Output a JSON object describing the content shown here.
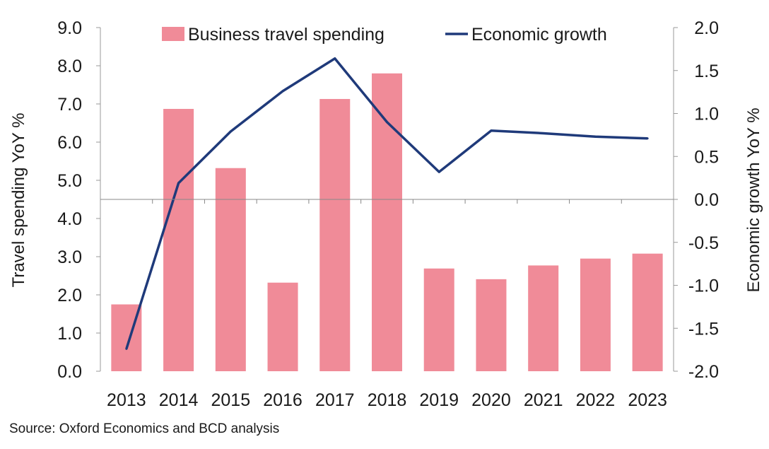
{
  "chart_data": {
    "type": "bar",
    "categories": [
      "2013",
      "2014",
      "2015",
      "2016",
      "2017",
      "2018",
      "2019",
      "2020",
      "2021",
      "2022",
      "2023"
    ],
    "series": [
      {
        "name": "Business travel spending",
        "type": "bar",
        "axis": "left",
        "color": "#f08b98",
        "values": [
          1.75,
          6.87,
          5.32,
          2.32,
          7.13,
          7.8,
          2.69,
          2.41,
          2.77,
          2.95,
          3.08
        ]
      },
      {
        "name": "Economic growth",
        "type": "line",
        "axis": "right",
        "color": "#1f3a7a",
        "values": [
          -1.74,
          0.19,
          0.79,
          1.26,
          1.64,
          0.9,
          0.32,
          0.8,
          0.77,
          0.73,
          0.71
        ]
      }
    ],
    "ylabel": "Travel spending YoY %",
    "y2label": "Economic growth YoY %",
    "ylim": [
      0,
      9
    ],
    "y2lim": [
      -2,
      2
    ],
    "yticks": [
      "0.0",
      "1.0",
      "2.0",
      "3.0",
      "4.0",
      "5.0",
      "6.0",
      "7.0",
      "8.0",
      "9.0"
    ],
    "y2ticks": [
      "-2.0",
      "-1.5",
      "-1.0",
      "-0.5",
      "0.0",
      "0.5",
      "1.0",
      "1.5",
      "2.0"
    ],
    "legend_position": "top",
    "grid": false
  },
  "source": "Source: Oxford Economics and BCD analysis"
}
